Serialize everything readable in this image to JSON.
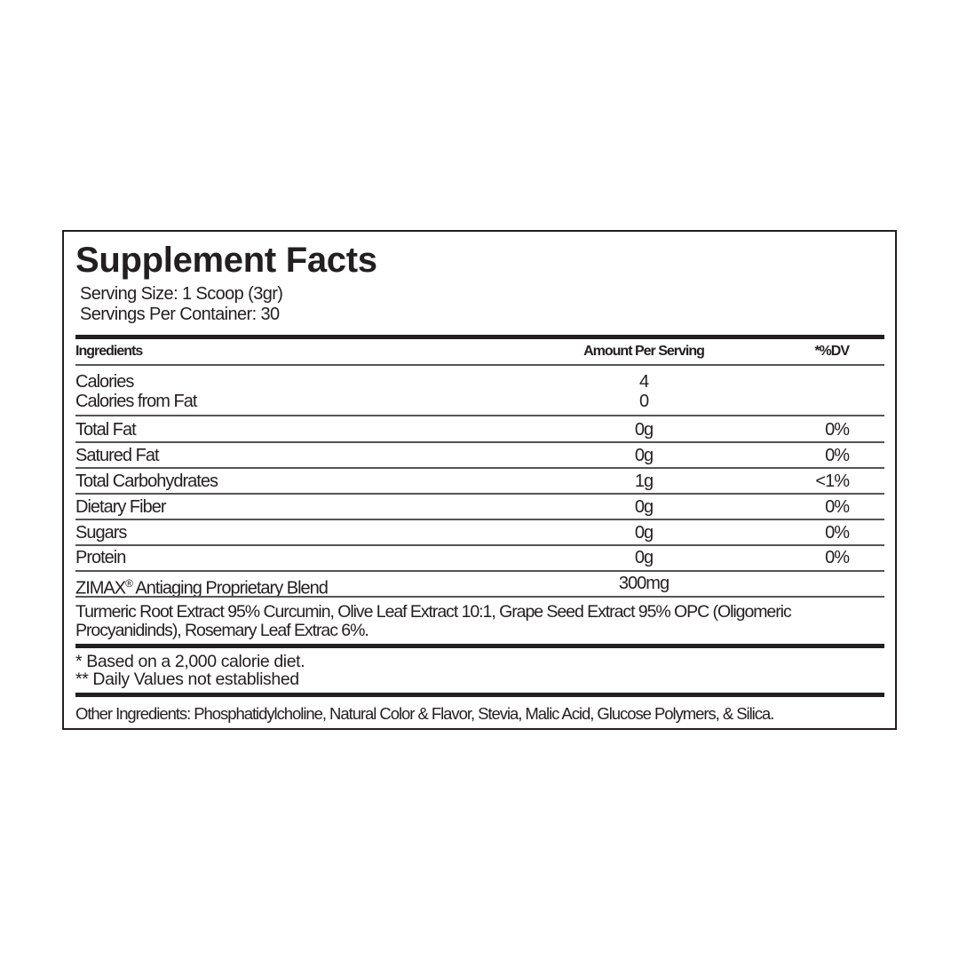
{
  "title": "Supplement Facts",
  "serving_size": "Serving Size: 1 Scoop (3gr)",
  "servings_per_container": "Servings Per Container: 30",
  "columns": {
    "ingredients": "Ingredients",
    "amount": "Amount Per Serving",
    "dv": "*%DV"
  },
  "rows": [
    {
      "name": "Calories",
      "amount": "4",
      "dv": ""
    },
    {
      "name": "Calories from Fat",
      "amount": "0",
      "dv": ""
    },
    {
      "name": "Total Fat",
      "amount": "0g",
      "dv": "0%"
    },
    {
      "name": "Satured Fat",
      "amount": "0g",
      "dv": "0%"
    },
    {
      "name": "Total Carbohydrates",
      "amount": "1g",
      "dv": "<1%"
    },
    {
      "name": "Dietary Fiber",
      "amount": "0g",
      "dv": "0%"
    },
    {
      "name": "Sugars",
      "amount": "0g",
      "dv": "0%"
    },
    {
      "name": "Protein",
      "amount": "0g",
      "dv": "0%"
    }
  ],
  "blend": {
    "brand": "ZIMAX",
    "mark": "®",
    "name": " Antiaging Proprietary Blend",
    "amount": "300mg",
    "ingredients_line1": "Turmeric Root Extract 95% Curcumin, Olive Leaf Extract 10:1, Grape Seed Extract 95% OPC (Oligomeric",
    "ingredients_line2": "Procyanidinds), Rosemary Leaf Extrac 6%."
  },
  "footnotes": [
    "* Based on a 2,000 calorie diet.",
    "** Daily Values not established"
  ],
  "other_ingredients": "Other Ingredients: Phosphatidylcholine, Natural Color & Flavor, Stevia, Malic Acid, Glucose Polymers, & Silica."
}
